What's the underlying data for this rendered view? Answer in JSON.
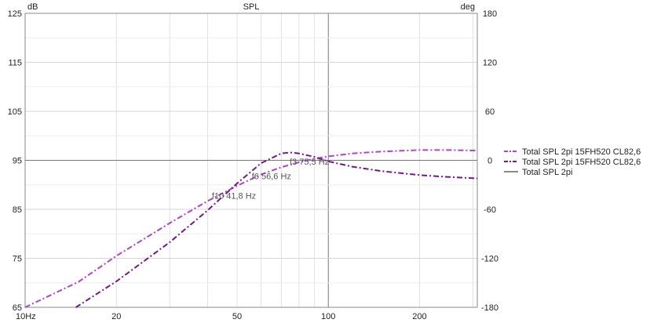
{
  "chart_data": {
    "type": "line",
    "title": "SPL",
    "y_left_unit": "dB",
    "y_right_unit": "deg",
    "x_scale": "log",
    "xlim": [
      10,
      310
    ],
    "ylim_left": [
      65,
      125
    ],
    "ylim_right": [
      -180,
      180
    ],
    "x_tick_labels": [
      {
        "value": 10,
        "label": "10Hz"
      },
      {
        "value": 20,
        "label": "20"
      },
      {
        "value": 50,
        "label": "50"
      },
      {
        "value": 100,
        "label": "100"
      },
      {
        "value": 200,
        "label": "200"
      }
    ],
    "y_left_ticks": [
      {
        "value": 65,
        "label": "65"
      },
      {
        "value": 75,
        "label": "75"
      },
      {
        "value": 85,
        "label": "85"
      },
      {
        "value": 95,
        "label": "95"
      },
      {
        "value": 105,
        "label": "105"
      },
      {
        "value": 115,
        "label": "115"
      },
      {
        "value": 125,
        "label": "125"
      }
    ],
    "y_right_ticks": [
      {
        "value": -180,
        "label": "-180"
      },
      {
        "value": -120,
        "label": "-120"
      },
      {
        "value": -60,
        "label": "-60"
      },
      {
        "value": 0,
        "label": "0"
      },
      {
        "value": 60,
        "label": "60"
      },
      {
        "value": 120,
        "label": "120"
      },
      {
        "value": 180,
        "label": "180"
      }
    ],
    "grid": true,
    "legend_position": "right",
    "series": [
      {
        "name": "Total SPL 2pi 15FH520 CL82,6",
        "color": "#b040d8",
        "style": "dashdot",
        "x": [
          10,
          15,
          20,
          30,
          40,
          50,
          60,
          70,
          80,
          90,
          100,
          120,
          150,
          200,
          250,
          310
        ],
        "y": [
          65,
          70.2,
          75.5,
          82.2,
          86.7,
          89.8,
          92.1,
          93.6,
          94.6,
          95.3,
          95.8,
          96.4,
          96.8,
          97.1,
          97.1,
          97.0
        ]
      },
      {
        "name": "Total SPL 2pi 15FH520 CL82,6",
        "color": "#7a1590",
        "style": "dashdot",
        "x": [
          14.7,
          20,
          30,
          40,
          50,
          60,
          70,
          75,
          80,
          90,
          100,
          120,
          150,
          200,
          250,
          310
        ],
        "y": [
          64.7,
          70.3,
          78.3,
          84.8,
          90.3,
          94.4,
          96.4,
          96.6,
          96.4,
          95.7,
          94.8,
          93.7,
          92.8,
          92.0,
          91.6,
          91.3
        ]
      },
      {
        "name": "Total SPL 2pi",
        "color": "#8a8a8a",
        "style": "solid",
        "x": [],
        "y": []
      }
    ],
    "annotations": [
      {
        "text": "f3 75,5 Hz",
        "x": 75.5,
        "y": 94.8
      },
      {
        "text": "f6 56,6 Hz",
        "x": 56.6,
        "y": 91.8
      },
      {
        "text": "f10 41,8 Hz",
        "x": 41.8,
        "y": 87.8
      }
    ]
  }
}
